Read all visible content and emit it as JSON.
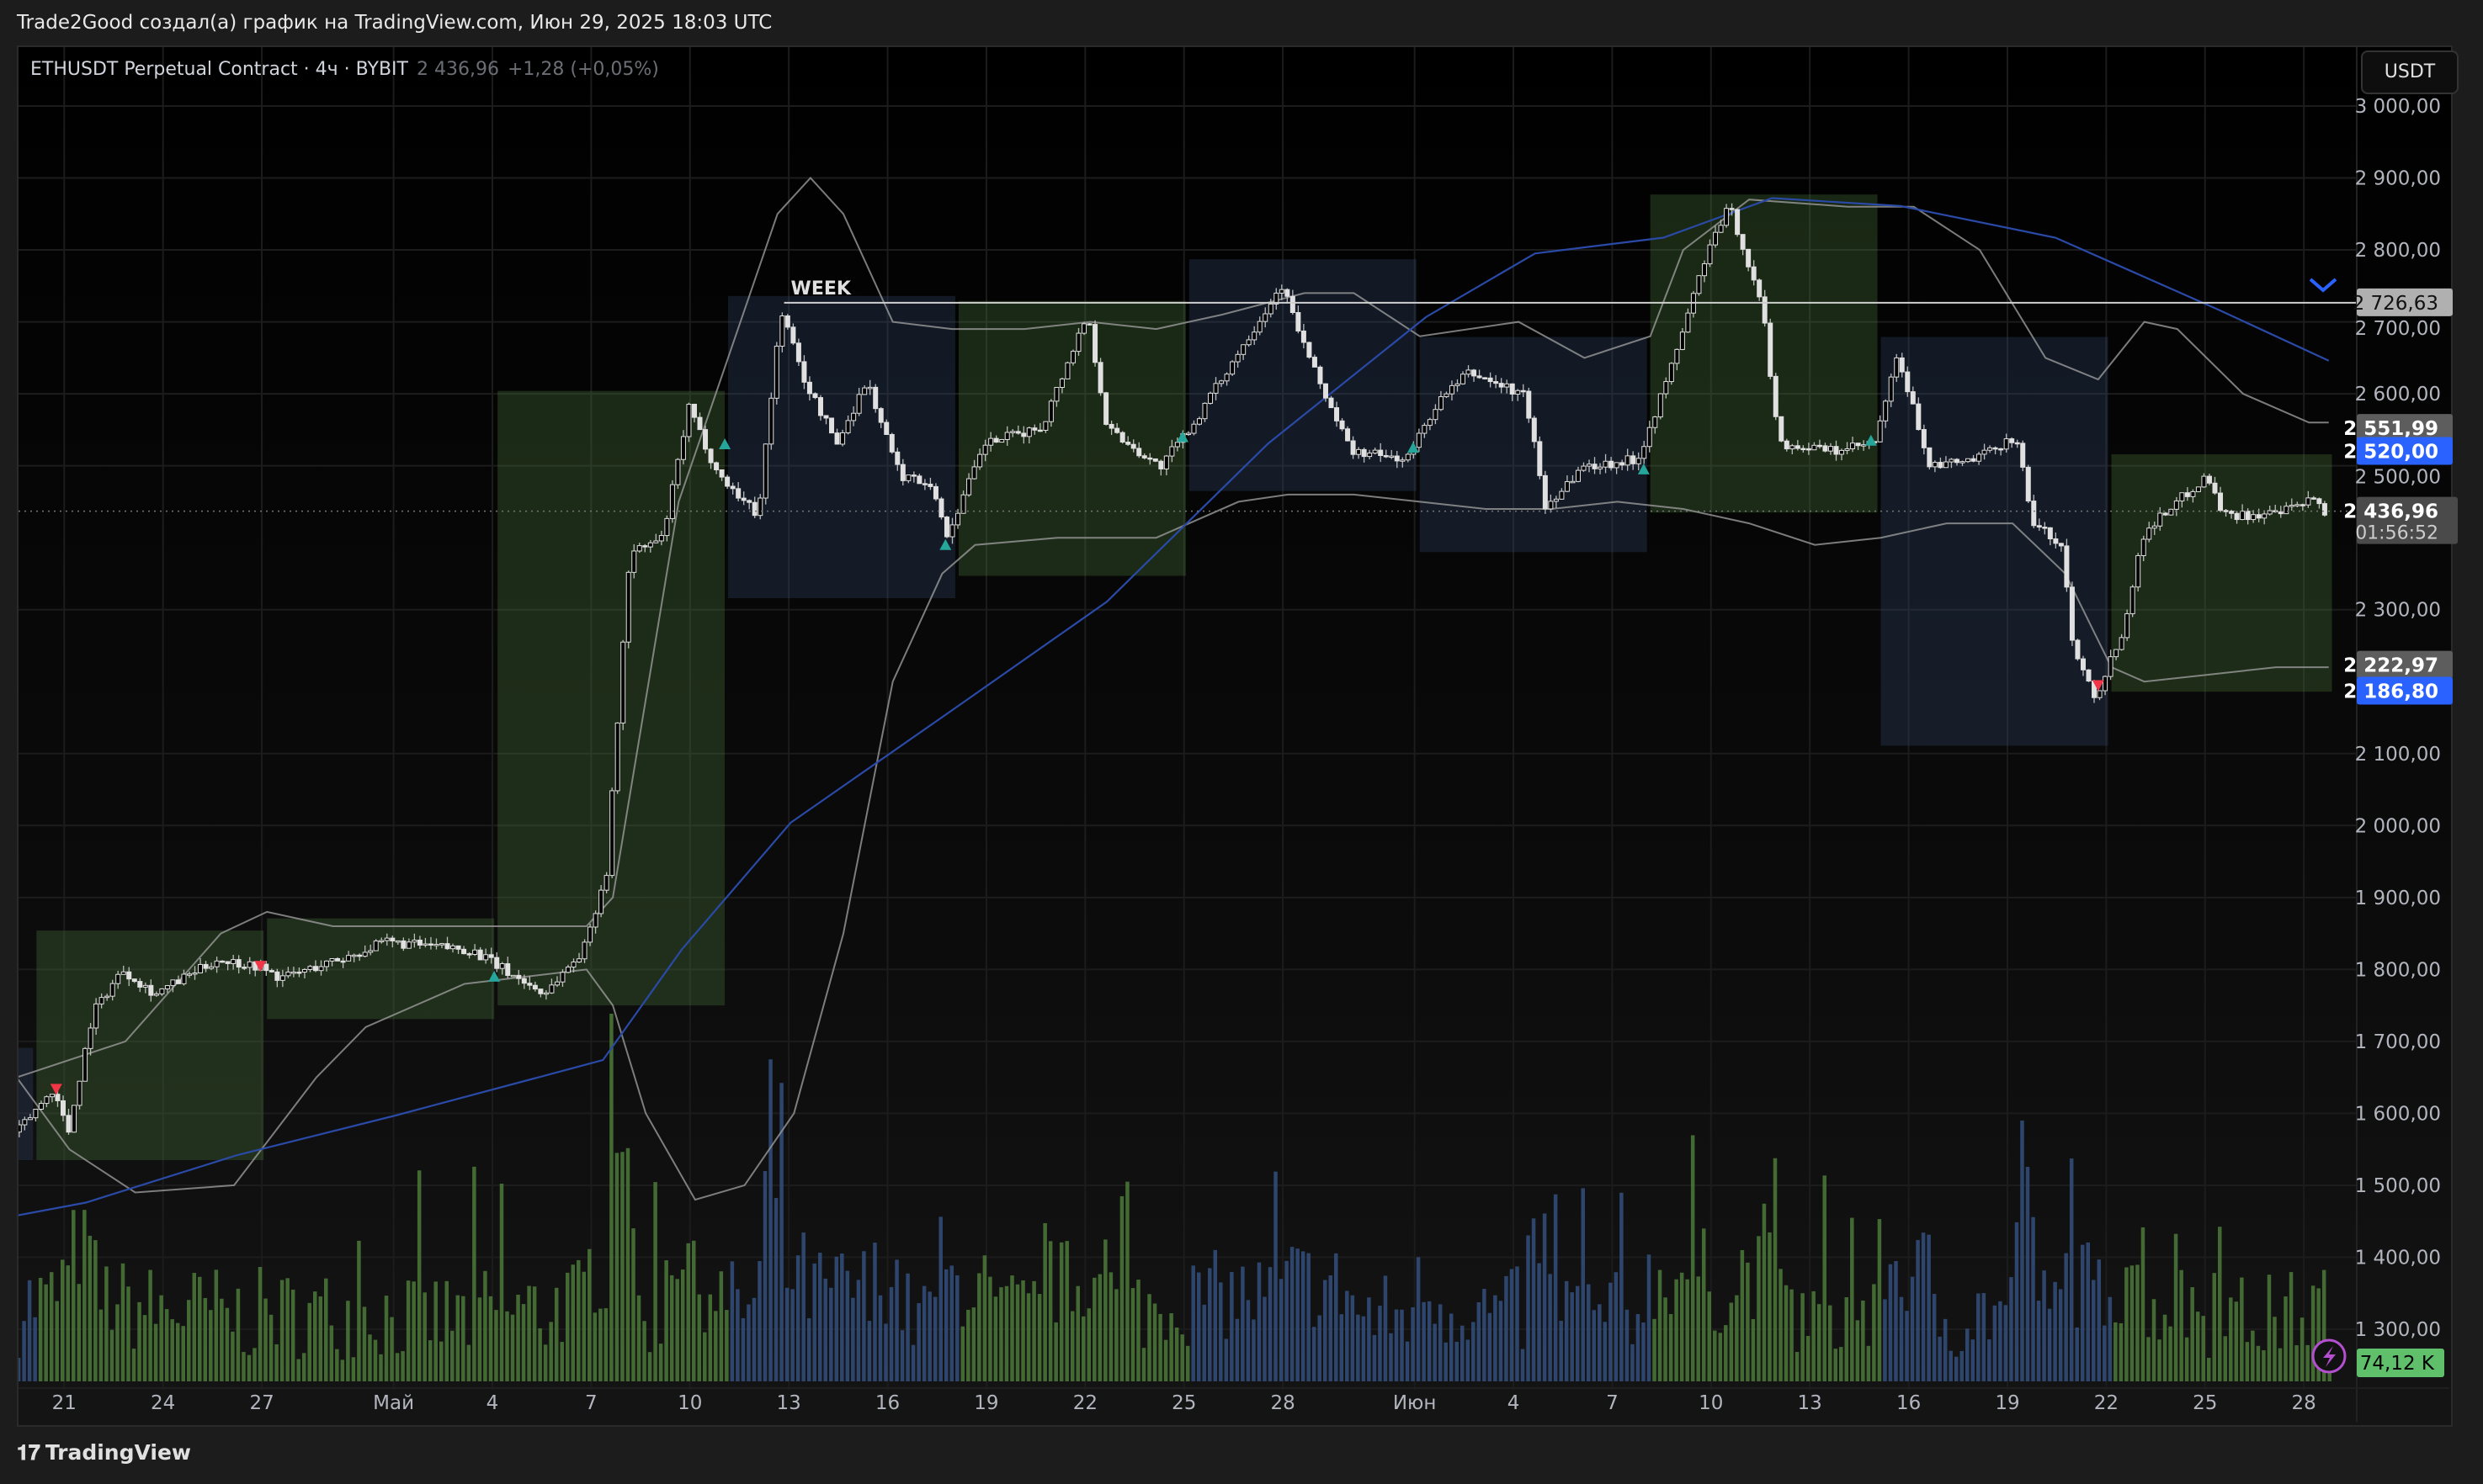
{
  "header": {
    "title": "Trade2Good создал(а) график на TradingView.com, Июн 29, 2025 18:03 UTC"
  },
  "legend": {
    "symbol": "ETHUSDT Perpetual Contract · 4ч · BYBIT",
    "last": "2 436,96",
    "change": "+1,28 (+0,05%)"
  },
  "currency_button": "USDT",
  "brand": {
    "name": "TradingView"
  },
  "colors": {
    "up_box": "#4c7a3c",
    "down_box": "#33486e",
    "ma": "#2a4aa8",
    "band": "#9a9a9a",
    "volume_green": "#4e7a3a",
    "volume_blue": "#34507e",
    "accent_blue": "#2962ff",
    "volume_badge": "#5fbf6a",
    "signal_up": "#26a69a",
    "signal_down": "#f23645"
  },
  "icons": {
    "alert": "lightning-icon",
    "scroll": "chevron-down-icon",
    "logo": "tradingview-logo"
  },
  "chart_data": {
    "type": "candlestick",
    "timeframe": "4ч",
    "ylim": [
      1250,
      3050
    ],
    "x_ticks": [
      {
        "day": 0,
        "label": "21"
      },
      {
        "day": 3,
        "label": "24"
      },
      {
        "day": 6,
        "label": "27"
      },
      {
        "day": 10,
        "label": "Май"
      },
      {
        "day": 13,
        "label": "4"
      },
      {
        "day": 16,
        "label": "7"
      },
      {
        "day": 19,
        "label": "10"
      },
      {
        "day": 22,
        "label": "13"
      },
      {
        "day": 25,
        "label": "16"
      },
      {
        "day": 28,
        "label": "19"
      },
      {
        "day": 31,
        "label": "22"
      },
      {
        "day": 34,
        "label": "25"
      },
      {
        "day": 37,
        "label": "28"
      },
      {
        "day": 41,
        "label": "Июн"
      },
      {
        "day": 44,
        "label": "4"
      },
      {
        "day": 47,
        "label": "7"
      },
      {
        "day": 50,
        "label": "10"
      },
      {
        "day": 53,
        "label": "13"
      },
      {
        "day": 56,
        "label": "16"
      },
      {
        "day": 59,
        "label": "19"
      },
      {
        "day": 62,
        "label": "22"
      },
      {
        "day": 65,
        "label": "25"
      },
      {
        "day": 68,
        "label": "28"
      }
    ],
    "y_ticks": [
      {
        "v": 3000,
        "label": "3 000,00"
      },
      {
        "v": 2900,
        "label": "2 900,00"
      },
      {
        "v": 2800,
        "label": "2 800,00"
      },
      {
        "v": 2700,
        "label": "2 700,00"
      },
      {
        "v": 2600,
        "label": "2 600,00"
      },
      {
        "v": 2500,
        "label": "2 500,00"
      },
      {
        "v": 2300,
        "label": "2 300,00"
      },
      {
        "v": 2100,
        "label": "2 100,00"
      },
      {
        "v": 2000,
        "label": "2 000,00"
      },
      {
        "v": 1900,
        "label": "1 900,00"
      },
      {
        "v": 1800,
        "label": "1 800,00"
      },
      {
        "v": 1700,
        "label": "1 700,00"
      },
      {
        "v": 1600,
        "label": "1 600,00"
      },
      {
        "v": 1500,
        "label": "1 500,00"
      },
      {
        "v": 1400,
        "label": "1 400,00"
      },
      {
        "v": 1300,
        "label": "1 300,00"
      }
    ],
    "price_path": [
      [
        -0.5,
        1574
      ],
      [
        0.6,
        1634
      ],
      [
        1.06,
        1574
      ],
      [
        1.8,
        1740
      ],
      [
        2.7,
        1800
      ],
      [
        3.7,
        1766
      ],
      [
        5.6,
        1814
      ],
      [
        6.8,
        1805
      ],
      [
        7.5,
        1788
      ],
      [
        9.5,
        1817
      ],
      [
        10.7,
        1838
      ],
      [
        13.3,
        1827
      ],
      [
        15.5,
        1766
      ],
      [
        16.7,
        1827
      ],
      [
        17.4,
        1937
      ],
      [
        18.1,
        2377
      ],
      [
        19.1,
        2399
      ],
      [
        19.9,
        2580
      ],
      [
        20.8,
        2487
      ],
      [
        22,
        2432
      ],
      [
        22.7,
        2718
      ],
      [
        23.4,
        2619
      ],
      [
        24.4,
        2531
      ],
      [
        25.3,
        2619
      ],
      [
        26.3,
        2487
      ],
      [
        27.3,
        2476
      ],
      [
        27.7,
        2399
      ],
      [
        28.9,
        2531
      ],
      [
        30.6,
        2553
      ],
      [
        32,
        2712
      ],
      [
        32.6,
        2553
      ],
      [
        34.2,
        2498
      ],
      [
        35.3,
        2564
      ],
      [
        36.8,
        2674
      ],
      [
        37.9,
        2751
      ],
      [
        38.8,
        2641
      ],
      [
        40,
        2520
      ],
      [
        41.7,
        2509
      ],
      [
        42.6,
        2586
      ],
      [
        43.6,
        2630
      ],
      [
        45.3,
        2597
      ],
      [
        45.9,
        2443
      ],
      [
        47,
        2498
      ],
      [
        48.7,
        2509
      ],
      [
        49.6,
        2619
      ],
      [
        50.8,
        2795
      ],
      [
        51.5,
        2861
      ],
      [
        52.5,
        2718
      ],
      [
        53,
        2531
      ],
      [
        54.7,
        2520
      ],
      [
        55.9,
        2531
      ],
      [
        56.6,
        2652
      ],
      [
        57.6,
        2498
      ],
      [
        59,
        2509
      ],
      [
        60.2,
        2542
      ],
      [
        60.7,
        2421
      ],
      [
        61.6,
        2388
      ],
      [
        61.9,
        2256
      ],
      [
        62.6,
        2179
      ],
      [
        63.4,
        2267
      ],
      [
        64.1,
        2410
      ],
      [
        66,
        2487
      ],
      [
        66.5,
        2432
      ],
      [
        68.1,
        2432
      ],
      [
        69.3,
        2454
      ],
      [
        69.5,
        2437
      ]
    ],
    "ma_line": [
      [
        -0.6,
        1458
      ],
      [
        1.5,
        1476
      ],
      [
        6.1,
        1542
      ],
      [
        10.9,
        1597
      ],
      [
        17.2,
        1674
      ],
      [
        19.6,
        1828
      ],
      [
        22.9,
        2004
      ],
      [
        27.7,
        2157
      ],
      [
        32.5,
        2311
      ],
      [
        37.4,
        2531
      ],
      [
        42.2,
        2707
      ],
      [
        45.5,
        2795
      ],
      [
        49.4,
        2817
      ],
      [
        52.7,
        2872
      ],
      [
        56.6,
        2861
      ],
      [
        61.3,
        2817
      ],
      [
        66.2,
        2718
      ],
      [
        69.6,
        2646
      ]
    ],
    "upper_band": [
      [
        -0.6,
        1650
      ],
      [
        2.7,
        1700
      ],
      [
        5.6,
        1850
      ],
      [
        7,
        1880
      ],
      [
        9,
        1860
      ],
      [
        12,
        1860
      ],
      [
        16.7,
        1860
      ],
      [
        17.5,
        1900
      ],
      [
        19.5,
        2450
      ],
      [
        21,
        2650
      ],
      [
        22.5,
        2850
      ],
      [
        23.5,
        2900
      ],
      [
        24.5,
        2850
      ],
      [
        26,
        2700
      ],
      [
        27.8,
        2690
      ],
      [
        30,
        2690
      ],
      [
        32,
        2700
      ],
      [
        34,
        2690
      ],
      [
        36,
        2710
      ],
      [
        38.5,
        2740
      ],
      [
        40,
        2740
      ],
      [
        42,
        2680
      ],
      [
        45,
        2700
      ],
      [
        47,
        2650
      ],
      [
        49,
        2680
      ],
      [
        50,
        2800
      ],
      [
        52,
        2870
      ],
      [
        55,
        2860
      ],
      [
        57,
        2860
      ],
      [
        59,
        2800
      ],
      [
        61,
        2650
      ],
      [
        62.6,
        2620
      ],
      [
        64,
        2700
      ],
      [
        65,
        2690
      ],
      [
        67,
        2600
      ],
      [
        69,
        2560
      ],
      [
        69.6,
        2560
      ]
    ],
    "lower_band": [
      [
        -0.6,
        1650
      ],
      [
        1,
        1550
      ],
      [
        3,
        1490
      ],
      [
        6,
        1500
      ],
      [
        8.5,
        1650
      ],
      [
        10,
        1720
      ],
      [
        13,
        1780
      ],
      [
        16.7,
        1800
      ],
      [
        17.5,
        1750
      ],
      [
        18.5,
        1600
      ],
      [
        20,
        1480
      ],
      [
        21.5,
        1500
      ],
      [
        23,
        1600
      ],
      [
        24.5,
        1850
      ],
      [
        26,
        2200
      ],
      [
        27.5,
        2350
      ],
      [
        28.5,
        2390
      ],
      [
        31,
        2400
      ],
      [
        34,
        2400
      ],
      [
        36.5,
        2450
      ],
      [
        38,
        2460
      ],
      [
        40,
        2460
      ],
      [
        42,
        2450
      ],
      [
        44,
        2440
      ],
      [
        46,
        2440
      ],
      [
        48,
        2450
      ],
      [
        50,
        2440
      ],
      [
        52,
        2420
      ],
      [
        54,
        2390
      ],
      [
        56,
        2400
      ],
      [
        58,
        2420
      ],
      [
        60,
        2420
      ],
      [
        61.6,
        2350
      ],
      [
        63,
        2220
      ],
      [
        64,
        2200
      ],
      [
        66,
        2210
      ],
      [
        68,
        2220
      ],
      [
        69.6,
        2220
      ]
    ],
    "weekly_boxes": [
      {
        "start": -1,
        "end": 0,
        "high": 1691,
        "low": 1535,
        "kind": "down"
      },
      {
        "start": 0,
        "end": 7,
        "high": 1854,
        "low": 1535,
        "kind": "up"
      },
      {
        "start": 7,
        "end": 14,
        "high": 1871,
        "low": 1731,
        "kind": "up"
      },
      {
        "start": 14,
        "end": 21,
        "high": 2604,
        "low": 1750,
        "kind": "up"
      },
      {
        "start": 21,
        "end": 28,
        "high": 2736,
        "low": 2316,
        "kind": "down"
      },
      {
        "start": 28,
        "end": 35,
        "high": 2729,
        "low": 2347,
        "kind": "up"
      },
      {
        "start": 35,
        "end": 42,
        "high": 2787,
        "low": 2465,
        "kind": "down"
      },
      {
        "start": 42,
        "end": 49,
        "high": 2679,
        "low": 2380,
        "kind": "down"
      },
      {
        "start": 49,
        "end": 56,
        "high": 2877,
        "low": 2435,
        "kind": "up"
      },
      {
        "start": 56,
        "end": 63,
        "high": 2679,
        "low": 2111,
        "kind": "down"
      },
      {
        "start": 63,
        "end": 69.8,
        "high": 2516,
        "low": 2186,
        "kind": "up"
      }
    ],
    "signals": [
      {
        "day": 0.6,
        "price": 1634,
        "dir": "down"
      },
      {
        "day": 6.8,
        "price": 1805,
        "dir": "down"
      },
      {
        "day": 13.9,
        "price": 1790,
        "dir": "up"
      },
      {
        "day": 20.9,
        "price": 2530,
        "dir": "up"
      },
      {
        "day": 27.6,
        "price": 2390,
        "dir": "up"
      },
      {
        "day": 34.8,
        "price": 2540,
        "dir": "up"
      },
      {
        "day": 41.8,
        "price": 2525,
        "dir": "up"
      },
      {
        "day": 48.8,
        "price": 2495,
        "dir": "up"
      },
      {
        "day": 55.7,
        "price": 2535,
        "dir": "up"
      },
      {
        "day": 62.6,
        "price": 2195,
        "dir": "down"
      }
    ],
    "week_level": {
      "label": "WEEK",
      "value": 2726.63,
      "from_day": 22.7
    },
    "price_labels": [
      {
        "value": 2726.63,
        "text": "2 726,63",
        "style": "light"
      },
      {
        "value": 2551.99,
        "text": "2 551,99",
        "style": "grey"
      },
      {
        "value": 2520.0,
        "text": "2 520,00",
        "style": "blue"
      },
      {
        "value": 2436.96,
        "text": "2 436,96",
        "sub": "01:56:52",
        "style": "dark"
      },
      {
        "value": 2222.97,
        "text": "2 222,97",
        "style": "grey"
      },
      {
        "value": 2186.8,
        "text": "2 186,80",
        "style": "blue"
      }
    ],
    "last_price": 2436.96,
    "countdown": "01:56:52",
    "volume_last": "74,12 K"
  }
}
